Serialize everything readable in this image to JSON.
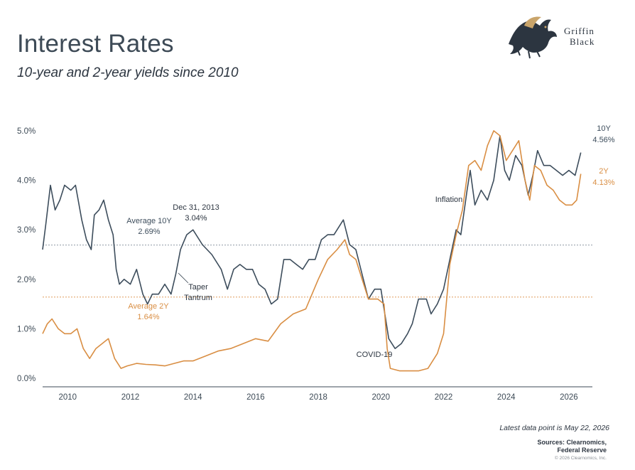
{
  "header": {
    "title": "Interest Rates",
    "subtitle": "10-year and 2-year yields since 2010",
    "logo_line1": "Griffin",
    "logo_line2": "Black"
  },
  "footer": {
    "latest": "Latest data point is May 22, 2026",
    "sources_line1": "Sources: Clearnomics,",
    "sources_line2": "Federal Reserve",
    "copyright": "© 2026 Clearnomics, Inc."
  },
  "colors": {
    "ten_year": "#3d4d5c",
    "two_year": "#d98e43",
    "axis": "#3d4a56",
    "avg10_line": "#7f8c99",
    "avg2_line": "#d98e43"
  },
  "chart_data": {
    "type": "line",
    "xlim": [
      2009.2,
      2026.75
    ],
    "ylim": [
      0,
      5.2
    ],
    "x_ticks": [
      "2010",
      "2012",
      "2014",
      "2016",
      "2018",
      "2020",
      "2022",
      "2024",
      "2026"
    ],
    "x_tick_values": [
      2010,
      2012,
      2014,
      2016,
      2018,
      2020,
      2022,
      2024,
      2026
    ],
    "y_ticks": [
      "0.0%",
      "1.0%",
      "2.0%",
      "3.0%",
      "4.0%",
      "5.0%"
    ],
    "y_tick_values": [
      0,
      1,
      2,
      3,
      4,
      5
    ],
    "series": [
      {
        "name": "10Y",
        "end_label": "4.56%",
        "x": [
          2009.2,
          2009.3,
          2009.45,
          2009.6,
          2009.75,
          2009.9,
          2010.1,
          2010.25,
          2010.45,
          2010.6,
          2010.75,
          2010.85,
          2011.0,
          2011.15,
          2011.3,
          2011.45,
          2011.55,
          2011.65,
          2011.8,
          2012.0,
          2012.2,
          2012.4,
          2012.55,
          2012.7,
          2012.9,
          2013.1,
          2013.3,
          2013.45,
          2013.6,
          2013.8,
          2014.0,
          2014.3,
          2014.6,
          2014.9,
          2015.1,
          2015.3,
          2015.5,
          2015.7,
          2015.9,
          2016.1,
          2016.3,
          2016.5,
          2016.7,
          2016.9,
          2017.1,
          2017.3,
          2017.5,
          2017.7,
          2017.9,
          2018.1,
          2018.3,
          2018.5,
          2018.8,
          2019.0,
          2019.2,
          2019.4,
          2019.6,
          2019.8,
          2020.0,
          2020.15,
          2020.25,
          2020.45,
          2020.65,
          2020.85,
          2021.0,
          2021.2,
          2021.45,
          2021.6,
          2021.8,
          2022.0,
          2022.2,
          2022.4,
          2022.55,
          2022.75,
          2022.85,
          2023.0,
          2023.2,
          2023.4,
          2023.6,
          2023.8,
          2023.95,
          2024.1,
          2024.3,
          2024.5,
          2024.7,
          2024.85,
          2025.0,
          2025.2,
          2025.4,
          2025.6,
          2025.8,
          2026.0,
          2026.2,
          2026.38
        ],
        "values": [
          2.6,
          3.1,
          3.9,
          3.4,
          3.6,
          3.9,
          3.8,
          3.9,
          3.2,
          2.8,
          2.6,
          3.3,
          3.4,
          3.6,
          3.2,
          2.9,
          2.2,
          1.9,
          2.0,
          1.9,
          2.2,
          1.7,
          1.5,
          1.7,
          1.7,
          1.9,
          1.7,
          2.1,
          2.6,
          2.9,
          3.0,
          2.7,
          2.5,
          2.2,
          1.8,
          2.2,
          2.3,
          2.2,
          2.2,
          1.9,
          1.8,
          1.5,
          1.6,
          2.4,
          2.4,
          2.3,
          2.2,
          2.4,
          2.4,
          2.8,
          2.9,
          2.9,
          3.2,
          2.7,
          2.6,
          2.1,
          1.6,
          1.8,
          1.8,
          1.2,
          0.8,
          0.6,
          0.7,
          0.9,
          1.1,
          1.6,
          1.6,
          1.3,
          1.5,
          1.8,
          2.4,
          3.0,
          2.9,
          3.8,
          4.2,
          3.5,
          3.8,
          3.6,
          4.0,
          4.9,
          4.2,
          4.0,
          4.5,
          4.3,
          3.7,
          4.1,
          4.6,
          4.3,
          4.3,
          4.2,
          4.1,
          4.2,
          4.1,
          4.56
        ]
      },
      {
        "name": "2Y",
        "end_label": "4.13%",
        "x": [
          2009.2,
          2009.35,
          2009.5,
          2009.7,
          2009.9,
          2010.1,
          2010.3,
          2010.5,
          2010.7,
          2010.9,
          2011.1,
          2011.3,
          2011.5,
          2011.7,
          2011.9,
          2012.2,
          2012.5,
          2012.8,
          2013.1,
          2013.4,
          2013.7,
          2014.0,
          2014.4,
          2014.8,
          2015.2,
          2015.6,
          2016.0,
          2016.4,
          2016.8,
          2017.2,
          2017.6,
          2018.0,
          2018.3,
          2018.6,
          2018.85,
          2019.0,
          2019.2,
          2019.4,
          2019.6,
          2019.9,
          2020.1,
          2020.2,
          2020.3,
          2020.6,
          2020.9,
          2021.2,
          2021.5,
          2021.8,
          2022.0,
          2022.2,
          2022.4,
          2022.6,
          2022.8,
          2023.0,
          2023.2,
          2023.4,
          2023.6,
          2023.8,
          2024.0,
          2024.2,
          2024.4,
          2024.6,
          2024.75,
          2024.9,
          2025.1,
          2025.3,
          2025.5,
          2025.7,
          2025.9,
          2026.1,
          2026.25,
          2026.38
        ],
        "values": [
          0.9,
          1.1,
          1.2,
          1.0,
          0.9,
          0.9,
          1.0,
          0.6,
          0.4,
          0.6,
          0.7,
          0.8,
          0.4,
          0.2,
          0.25,
          0.3,
          0.28,
          0.27,
          0.25,
          0.3,
          0.35,
          0.35,
          0.45,
          0.55,
          0.6,
          0.7,
          0.8,
          0.75,
          1.1,
          1.3,
          1.4,
          2.0,
          2.4,
          2.6,
          2.8,
          2.5,
          2.4,
          2.0,
          1.6,
          1.6,
          1.5,
          0.6,
          0.2,
          0.15,
          0.15,
          0.15,
          0.2,
          0.5,
          0.9,
          2.3,
          2.9,
          3.4,
          4.3,
          4.4,
          4.2,
          4.7,
          5.0,
          4.9,
          4.4,
          4.6,
          4.8,
          4.0,
          3.6,
          4.3,
          4.2,
          3.9,
          3.8,
          3.6,
          3.5,
          3.5,
          3.6,
          4.13
        ]
      }
    ],
    "reference_lines": [
      {
        "name": "Average 10Y",
        "value": 2.69,
        "label": "Average 10Y",
        "value_label": "2.69%"
      },
      {
        "name": "Average 2Y",
        "value": 1.64,
        "label": "Average 2Y",
        "value_label": "1.64%"
      }
    ],
    "annotations": [
      {
        "text": "Dec 31, 2013",
        "sub": "3.04%"
      },
      {
        "text": "Taper",
        "sub": "Tantrum"
      },
      {
        "text": "Inflation"
      },
      {
        "text": "COVID-19"
      }
    ],
    "grid": false
  }
}
